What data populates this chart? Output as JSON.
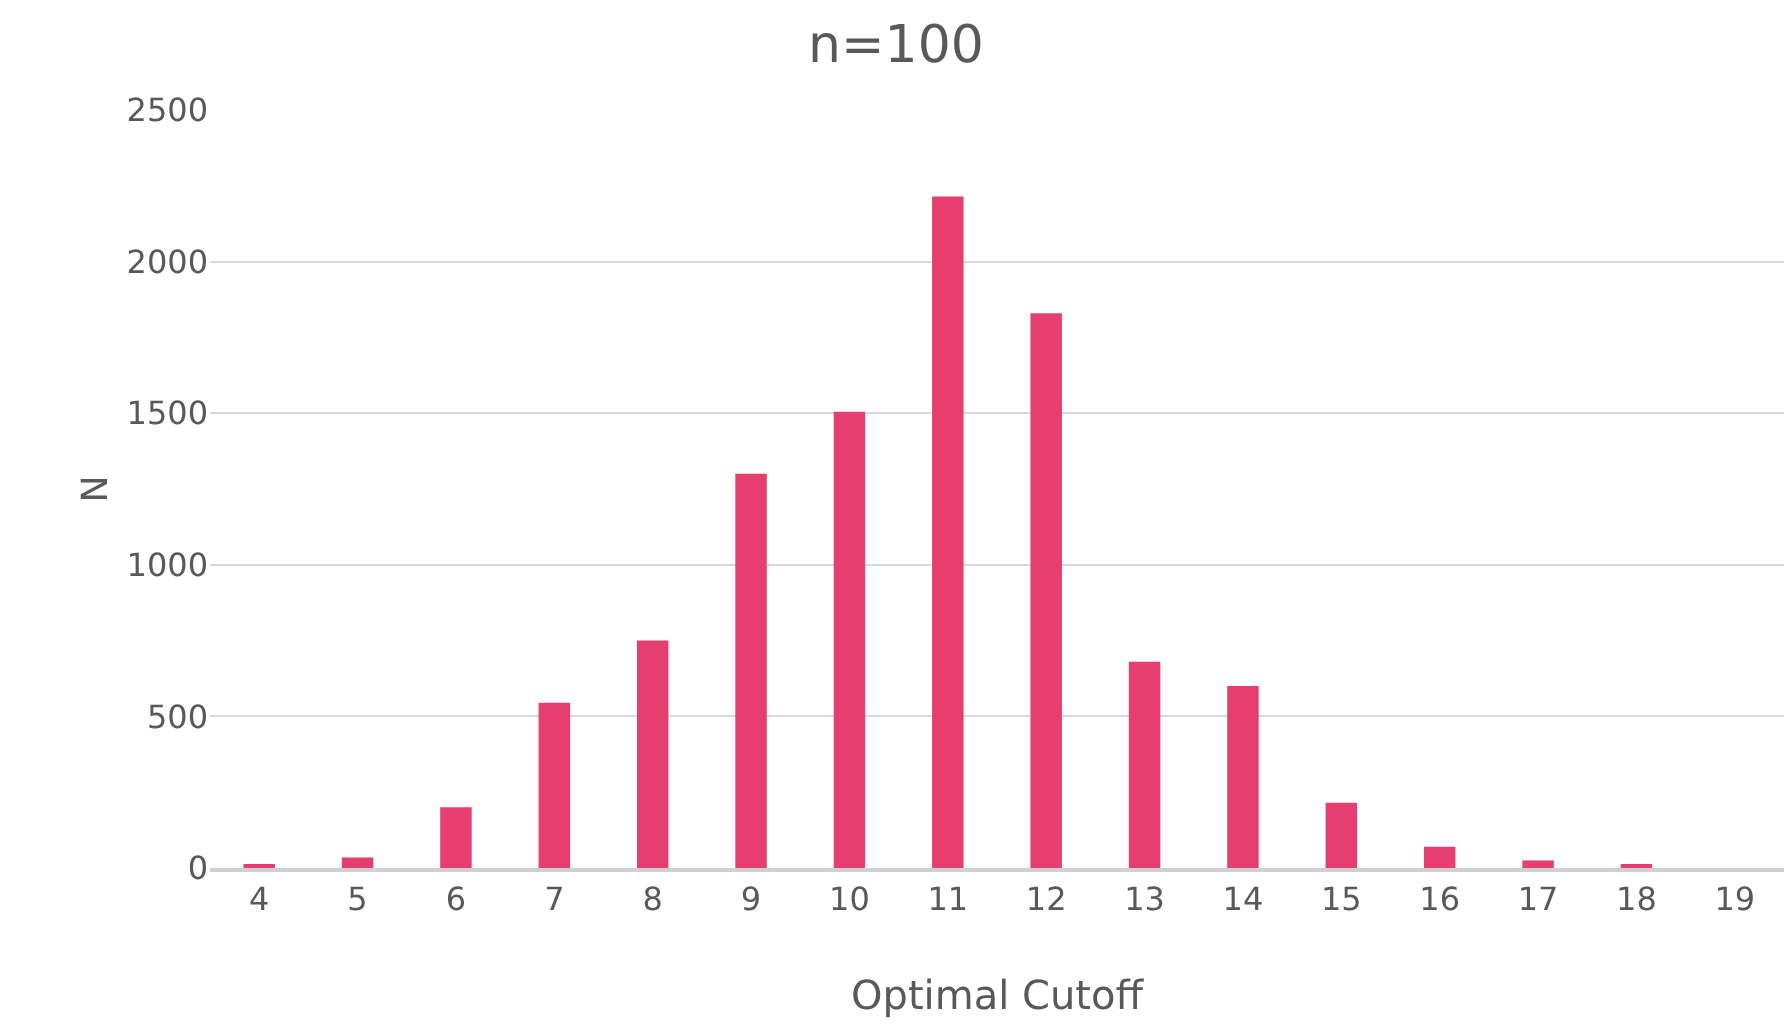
{
  "chart_data": {
    "type": "bar",
    "title": "n=100",
    "xlabel": "Optimal Cutoff",
    "ylabel": "N",
    "categories": [
      "4",
      "5",
      "6",
      "7",
      "8",
      "9",
      "10",
      "11",
      "12",
      "13",
      "14",
      "15",
      "16",
      "17",
      "18",
      "19"
    ],
    "values": [
      8,
      35,
      200,
      545,
      750,
      1300,
      1505,
      2215,
      1830,
      680,
      600,
      215,
      70,
      25,
      8,
      0
    ],
    "color": "#e53e6f",
    "ylim": [
      0,
      2500
    ],
    "yticks": [
      0,
      500,
      1000,
      1500,
      2000,
      2500
    ],
    "grid": "y",
    "legend": false
  }
}
